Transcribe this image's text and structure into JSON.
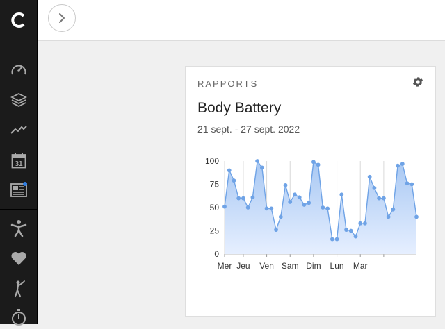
{
  "app": {
    "accent_color": "#2f7de1",
    "nav_icons": [
      "gauge-icon",
      "layers-icon",
      "activity-icon",
      "calendar-icon",
      "news-icon",
      "fitness-person-icon",
      "heart-icon",
      "golf-icon",
      "stopwatch-icon"
    ],
    "calendar_day": "31",
    "news_unread": true
  },
  "report": {
    "section_label": "RAPPORTS",
    "title": "Body Battery",
    "date_range": "21 sept. - 27 sept. 2022"
  },
  "chart_data": {
    "type": "area",
    "y_ticks": [
      "100",
      "75",
      "50",
      "25",
      "0"
    ],
    "ylim": [
      0,
      100
    ],
    "day_labels": [
      "Mer",
      "Jeu",
      "Ven",
      "Sam",
      "Dim",
      "Lun",
      "Mar"
    ],
    "day_positions": [
      0,
      4,
      9,
      14,
      19,
      24,
      29,
      34
    ],
    "values": [
      51,
      90,
      79,
      60,
      60,
      50,
      61,
      100,
      93,
      49,
      49,
      26,
      40,
      74,
      56,
      64,
      61,
      53,
      55,
      99,
      96,
      50,
      49,
      16,
      16,
      64,
      26,
      25,
      19,
      33,
      33,
      83,
      71,
      60,
      60,
      40,
      48,
      95,
      97,
      76,
      75,
      40
    ],
    "grid": true,
    "line_color": "#6fa3e6",
    "fill_top_color": "#a8c8f3",
    "fill_bottom_color": "#e6efff"
  }
}
